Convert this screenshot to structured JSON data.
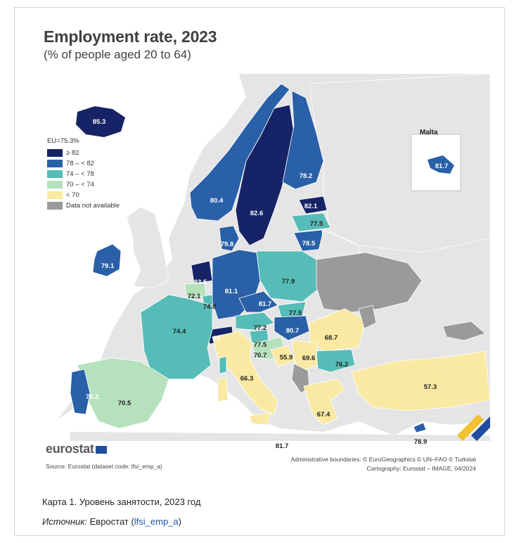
{
  "figure": {
    "title": "Employment rate, 2023",
    "subtitle": "(% of people aged 20 to 64)",
    "legend": {
      "eu_label": "EU=75.3%",
      "items": [
        {
          "label": "≥ 82",
          "color": "#162366"
        },
        {
          "label": "78 – < 82",
          "color": "#2960a8"
        },
        {
          "label": "74 – < 78",
          "color": "#56bcb8"
        },
        {
          "label": "70 – < 74",
          "color": "#b6e1bd"
        },
        {
          "label": "< 70",
          "color": "#fae9a2"
        },
        {
          "label": "Data not available",
          "color": "#9a9a9a"
        }
      ]
    },
    "inset_label": "Malta",
    "logo": "eurostat",
    "source": "Source: Eurostat (dataset code: lfsi_emp_a)",
    "credits_line1": "Administrative boundaries: © EuroGeographics © UN–FAO © Turkstat",
    "credits_line2": "Cartography: Eurostat – IMAGE, 04/2024"
  },
  "map_data": {
    "regions": [
      {
        "name": "Iceland",
        "value": "85.3",
        "class": "≥ 82"
      },
      {
        "name": "Norway",
        "value": "80.4",
        "class": "78 – < 82"
      },
      {
        "name": "Sweden",
        "value": "82.6",
        "class": "≥ 82"
      },
      {
        "name": "Finland",
        "value": "78.2",
        "class": "78 – < 82"
      },
      {
        "name": "Estonia",
        "value": "82.1",
        "class": "≥ 82"
      },
      {
        "name": "Latvia",
        "value": "77.5",
        "class": "74 – < 78"
      },
      {
        "name": "Lithuania",
        "value": "78.5",
        "class": "78 – < 82"
      },
      {
        "name": "Denmark",
        "value": "79.8",
        "class": "78 – < 82"
      },
      {
        "name": "Ireland",
        "value": "79.1",
        "class": "78 – < 82"
      },
      {
        "name": "Netherlands",
        "value": "83.5",
        "class": "≥ 82"
      },
      {
        "name": "Belgium",
        "value": "72.1",
        "class": "70 – < 74"
      },
      {
        "name": "Luxembourg",
        "value": "74.8",
        "class": "74 – < 78"
      },
      {
        "name": "Germany",
        "value": "81.1",
        "class": "78 – < 82"
      },
      {
        "name": "Poland",
        "value": "77.9",
        "class": "74 – < 78"
      },
      {
        "name": "Czechia",
        "value": "81.7",
        "class": "78 – < 82"
      },
      {
        "name": "Slovakia",
        "value": "77.5",
        "class": "74 – < 78"
      },
      {
        "name": "Austria",
        "value": "77.2",
        "class": "74 – < 78"
      },
      {
        "name": "Hungary",
        "value": "80.7",
        "class": "78 – < 82"
      },
      {
        "name": "Switzerland",
        "value": "83",
        "class": "≥ 82"
      },
      {
        "name": "France",
        "value": "74.4",
        "class": "74 – < 78"
      },
      {
        "name": "Slovenia",
        "value": "77.5",
        "class": "74 – < 78"
      },
      {
        "name": "Croatia",
        "value": "70.7",
        "class": "70 – < 74"
      },
      {
        "name": "Bosnia and Herzegovina",
        "value": "55.9",
        "class": "< 70"
      },
      {
        "name": "Serbia",
        "value": "69.6",
        "class": "< 70"
      },
      {
        "name": "Romania",
        "value": "68.7",
        "class": "< 70"
      },
      {
        "name": "Bulgaria",
        "value": "76.2",
        "class": "74 – < 78"
      },
      {
        "name": "Italy",
        "value": "66.3",
        "class": "< 70"
      },
      {
        "name": "Greece",
        "value": "67.4",
        "class": "< 70"
      },
      {
        "name": "Turkey",
        "value": "57.3",
        "class": "< 70"
      },
      {
        "name": "Spain",
        "value": "70.5",
        "class": "70 – < 74"
      },
      {
        "name": "Portugal",
        "value": "78.2",
        "class": "78 – < 82"
      },
      {
        "name": "Cyprus",
        "value": "78.9",
        "class": "78 – < 82"
      },
      {
        "name": "Malta",
        "value": "81.7",
        "class": "78 – < 82"
      },
      {
        "name": "Malta (inset)",
        "value": "81.7",
        "class": "78 – < 82"
      }
    ]
  },
  "caption": "Карта 1. Уровень занятости, 2023 год",
  "source_prefix": "Источник:",
  "source_text": " Евростат (",
  "source_link": "lfsi_emp_a",
  "source_suffix": ")"
}
